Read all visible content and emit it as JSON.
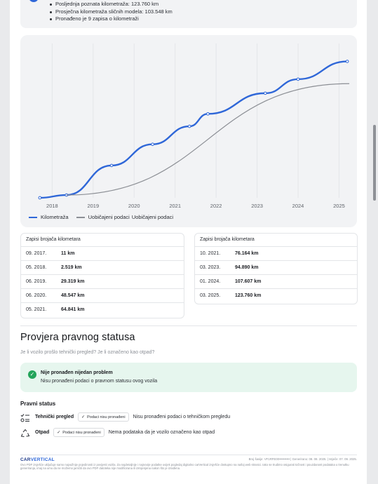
{
  "summary": {
    "items": [
      "Posljednja poznata kilometraža: 123.760 km",
      "Prosječna kilometraža sličnih modela: 103.548 km",
      "Pronađeno je 9 zapisa o kilometraži"
    ]
  },
  "chart_data": {
    "type": "line",
    "x_ticks": [
      "2018",
      "2019",
      "2020",
      "2021",
      "2022",
      "2023",
      "2024",
      "2025"
    ],
    "series": [
      {
        "name": "Kilometraža",
        "color": "#2f67d8",
        "points": [
          {
            "x": 2017.7,
            "y": 11
          },
          {
            "x": 2018.35,
            "y": 2519
          },
          {
            "x": 2019.45,
            "y": 29319
          },
          {
            "x": 2020.45,
            "y": 48547
          },
          {
            "x": 2021.35,
            "y": 64841
          },
          {
            "x": 2021.8,
            "y": 76164
          },
          {
            "x": 2023.2,
            "y": 94890
          },
          {
            "x": 2024.0,
            "y": 107607
          },
          {
            "x": 2025.2,
            "y": 123760
          }
        ]
      },
      {
        "name": "Uobičajeni podaci",
        "color": "#8c8f95",
        "points": [
          {
            "x": 2018.35,
            "y": 2519
          },
          {
            "x": 2025.25,
            "y": 103548
          }
        ]
      }
    ],
    "legend_labels": [
      "Kilometraža",
      "Uobičajeni podaci",
      "Uobičajeni podaci"
    ],
    "xlim": [
      2017.6,
      2025.3
    ],
    "ylim": [
      0,
      140000
    ],
    "grid": "vertical"
  },
  "records": {
    "left_title": "Zapisi brojača kilometara",
    "left_rows": [
      {
        "date": "09. 2017.",
        "value": "11 km"
      },
      {
        "date": "05. 2018.",
        "value": "2.519 km"
      },
      {
        "date": "06. 2019.",
        "value": "29.319 km"
      },
      {
        "date": "06. 2020.",
        "value": "48.547 km"
      },
      {
        "date": "05. 2021.",
        "value": "64.841 km"
      }
    ],
    "right_title": "Zapisi brojača kilometara",
    "right_rows": [
      {
        "date": "10. 2021.",
        "value": "76.164 km"
      },
      {
        "date": "03. 2023.",
        "value": "94.890 km"
      },
      {
        "date": "01. 2024.",
        "value": "107.607 km"
      },
      {
        "date": "03. 2025.",
        "value": "123.760 km"
      }
    ]
  },
  "legal": {
    "title": "Provjera pravnog statusa",
    "subtitle": "Je li vozilo prošlo tehnički pregled? Je li označeno kao otpad?",
    "ok_title": "Nije pronađen nijedan problem",
    "ok_text": "Nisu pronađeni podaci o pravnom statusu ovog vozila",
    "status_heading": "Pravni status",
    "rows": [
      {
        "label": "Tehnički pregled",
        "chip": "Podaci nisu pronađeni",
        "text": "Nisu pronađeni podaci o tehničkom pregledu",
        "icon": "checklist-icon"
      },
      {
        "label": "Otpad",
        "chip": "Podaci nisu pronađeni",
        "text": "Nema podataka da je vozilo označeno kao otpad",
        "icon": "recycle-icon"
      }
    ]
  },
  "footer": {
    "logo_a": "CAR",
    "logo_b": "VERTICAL",
    "meta": "Broj šasije: VF1RFE00••••••••••  |  Generirano: 08. 08. 2025.  |  Istječe: 07. 09. 2025.",
    "disclaimer": "Ovo PDF izvješće uključuje samo najvažnije pojedinosti iz povijesti vozila. Za najdetaljnije i najnovije podatke uvijek pogledaj digitalno carVertical izvješće dostupno na našoj web stranici. Iako se trudimo osigurati točnost i pouzdanost podataka u trenutku generiranja, imaj na umu da ne možemo jamčiti da ovo PDF datoteka nije modificirana ili izmijenjena nakon što je izrađena."
  },
  "colors": {
    "accent": "#2f67d8",
    "success": "#23a45a",
    "success_bg": "#e6f6ee"
  }
}
